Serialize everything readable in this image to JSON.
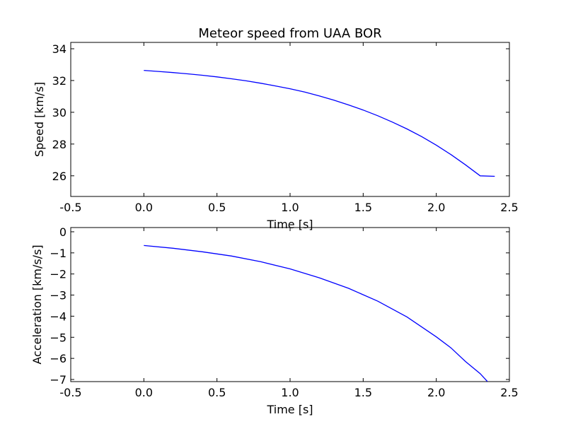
{
  "chart_data": [
    {
      "type": "line",
      "title": "Meteor speed from  UAA BOR",
      "xlabel": "Time [s]",
      "ylabel": "Speed [km/s]",
      "xlim": [
        -0.5,
        2.5
      ],
      "ylim": [
        24.7,
        34.4
      ],
      "xticks": [
        "-0.5",
        "0.0",
        "0.5",
        "1.0",
        "1.5",
        "2.0",
        "2.5"
      ],
      "yticks": [
        "26",
        "28",
        "30",
        "32",
        "34"
      ],
      "series": [
        {
          "color": "#0000ff",
          "x": [
            0.0,
            0.1,
            0.2,
            0.3,
            0.4,
            0.5,
            0.6,
            0.7,
            0.8,
            0.9,
            1.0,
            1.1,
            1.2,
            1.3,
            1.4,
            1.5,
            1.6,
            1.7,
            1.8,
            1.9,
            2.0,
            2.1,
            2.2,
            2.3,
            2.4
          ],
          "y": [
            32.64,
            32.57,
            32.5,
            32.42,
            32.33,
            32.23,
            32.11,
            31.98,
            31.83,
            31.66,
            31.48,
            31.27,
            31.03,
            30.76,
            30.46,
            30.14,
            29.78,
            29.38,
            28.95,
            28.47,
            27.93,
            27.34,
            26.69,
            26.0,
            25.97
          ]
        }
      ]
    },
    {
      "type": "line",
      "title": "",
      "xlabel": "Time [s]",
      "ylabel": "Acceleration [km/s/s]",
      "xlim": [
        -0.5,
        2.5
      ],
      "ylim": [
        -7.1,
        0.2
      ],
      "xticks": [
        "-0.5",
        "0.0",
        "0.5",
        "1.0",
        "1.5",
        "2.0",
        "2.5"
      ],
      "yticks": [
        "0",
        "−1",
        "−2",
        "−3",
        "−4",
        "−5",
        "−6",
        "−7"
      ],
      "series": [
        {
          "color": "#0000ff",
          "x": [
            0.0,
            0.2,
            0.4,
            0.6,
            0.8,
            1.0,
            1.2,
            1.4,
            1.6,
            1.8,
            2.0,
            2.1,
            2.2,
            2.3,
            2.35
          ],
          "y": [
            -0.65,
            -0.78,
            -0.95,
            -1.15,
            -1.42,
            -1.76,
            -2.18,
            -2.68,
            -3.29,
            -4.04,
            -4.98,
            -5.5,
            -6.15,
            -6.72,
            -7.1
          ]
        }
      ]
    }
  ]
}
